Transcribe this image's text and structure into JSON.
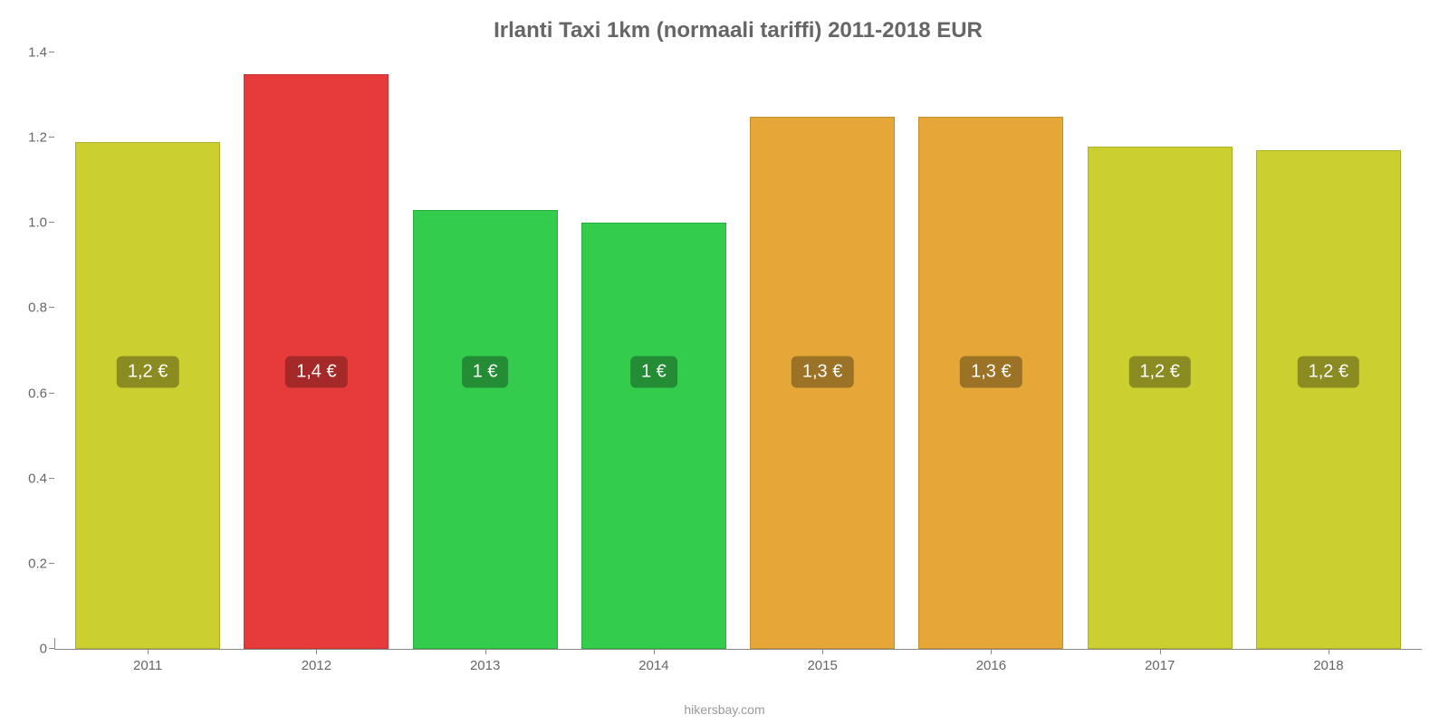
{
  "chart": {
    "type": "bar",
    "title": "Irlanti Taxi 1km (normaali tariffi) 2011-2018 EUR",
    "title_color": "#666666",
    "title_fontsize": 24,
    "background_color": "#ffffff",
    "footer": "hikersbay.com",
    "footer_color": "#999999",
    "y_axis": {
      "min": 0,
      "max": 1.4,
      "ticks": [
        0,
        0.2,
        0.4,
        0.6,
        0.8,
        1.0,
        1.2,
        1.4
      ],
      "tick_labels": [
        "0",
        "0.2",
        "0.4",
        "0.6",
        "0.8",
        "1.0",
        "1.2",
        "1.4"
      ],
      "label_color": "#666666",
      "label_fontsize": 15
    },
    "x_axis": {
      "label_color": "#666666",
      "label_fontsize": 15
    },
    "bars": [
      {
        "category": "2011",
        "value": 1.19,
        "label": "1,2 €",
        "color": "#cccf30",
        "badge_bg": "#8a8c21"
      },
      {
        "category": "2012",
        "value": 1.35,
        "label": "1,4 €",
        "color": "#e73b3b",
        "badge_bg": "#a52929"
      },
      {
        "category": "2013",
        "value": 1.03,
        "label": "1 €",
        "color": "#33cc4c",
        "badge_bg": "#238c34"
      },
      {
        "category": "2014",
        "value": 1.0,
        "label": "1 €",
        "color": "#33cc4c",
        "badge_bg": "#238c34"
      },
      {
        "category": "2015",
        "value": 1.25,
        "label": "1,3 €",
        "color": "#e5a838",
        "badge_bg": "#9c7226"
      },
      {
        "category": "2016",
        "value": 1.25,
        "label": "1,3 €",
        "color": "#e5a838",
        "badge_bg": "#9c7226"
      },
      {
        "category": "2017",
        "value": 1.18,
        "label": "1,2 €",
        "color": "#cccf30",
        "badge_bg": "#8a8c21"
      },
      {
        "category": "2018",
        "value": 1.17,
        "label": "1,2 €",
        "color": "#cccf30",
        "badge_bg": "#8a8c21"
      }
    ],
    "bar_width_ratio": 0.86,
    "label_position_value": 0.65
  }
}
